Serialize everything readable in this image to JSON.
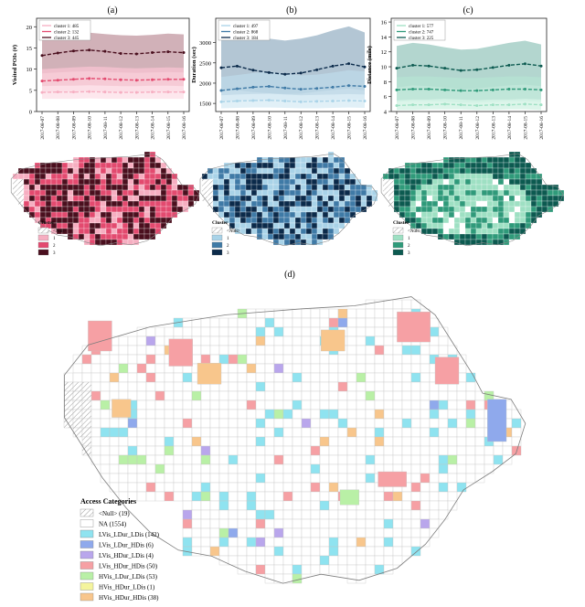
{
  "panels": [
    {
      "label": "(a)",
      "ylabel": "Visited POIs (#)",
      "ylim": [
        0,
        22
      ],
      "yticks": [
        0,
        5,
        10,
        15,
        20
      ],
      "palette": {
        "light": "#f6aec1",
        "mid": "#e34a6f",
        "dark": "#4a0f1e"
      },
      "band_colors": [
        "#fde3ea",
        "#f4c2cf",
        "#c9a3ab"
      ],
      "legend": [
        "cluster 1: 485",
        "cluster 2: 132",
        "cluster 3: 445"
      ],
      "map_legend": {
        "title": "Cluster",
        "items": [
          "<Null>",
          "1",
          "2",
          "3"
        ]
      }
    },
    {
      "label": "(b)",
      "ylabel": "Duration (sec)",
      "ylim": [
        1300,
        3600
      ],
      "yticks": [
        1500,
        2000,
        2500,
        3000
      ],
      "palette": {
        "light": "#a9d3e8",
        "mid": "#3f7aa6",
        "dark": "#0b2a4a"
      },
      "band_colors": [
        "#dcedf6",
        "#bcd7e6",
        "#a6bccd"
      ],
      "legend": [
        "cluster 1: 497",
        "cluster 2: 868",
        "cluster 3: 184"
      ],
      "map_legend": {
        "title": "Cluster",
        "items": [
          "<Null>",
          "1",
          "2",
          "3"
        ]
      }
    },
    {
      "label": "(c)",
      "ylabel": "Distance (mile)",
      "ylim": [
        4,
        16.5
      ],
      "yticks": [
        4,
        6,
        8,
        10,
        12,
        14,
        16
      ],
      "palette": {
        "light": "#9ee0c3",
        "mid": "#2f9a7a",
        "dark": "#0c5a50"
      },
      "band_colors": [
        "#d6f3e6",
        "#b5e2d2",
        "#a6cfc7"
      ],
      "legend": [
        "cluster 1: 577",
        "cluster 2: 747",
        "cluster 3: 225"
      ],
      "map_legend": {
        "title": "Cluster",
        "items": [
          "<Null>",
          "1",
          "2",
          "3"
        ]
      }
    }
  ],
  "panel_d": {
    "label": "(d)",
    "legend_title": "Access Categories",
    "categories": [
      {
        "label": "<Null> (19)",
        "color": "hatch"
      },
      {
        "label": "NA (1554)",
        "color": "#ffffff"
      },
      {
        "label": "LVis_LDur_LDis (142)",
        "color": "#8fe3f0"
      },
      {
        "label": "LVis_LDur_HDis (6)",
        "color": "#8fa9ec"
      },
      {
        "label": "LVis_HDur_LDis (4)",
        "color": "#b9a6ec"
      },
      {
        "label": "LVis_HDur_HDis (50)",
        "color": "#f6a0a4"
      },
      {
        "label": "HVis_LDur_LDis (53)",
        "color": "#b9f0a6"
      },
      {
        "label": "HVis_HDur_LDis (1)",
        "color": "#f4f49c"
      },
      {
        "label": "HVis_HDur_HDis (38)",
        "color": "#f8c68c"
      }
    ]
  },
  "chart_data": [
    {
      "type": "line",
      "x": [
        "2017-08-07",
        "2017-08-08",
        "2017-08-09",
        "2017-08-10",
        "2017-08-11",
        "2017-08-12",
        "2017-08-13",
        "2017-08-14",
        "2017-08-15",
        "2017-08-16"
      ],
      "ylabel": "Visited POIs (#)",
      "ylim": [
        0,
        22
      ],
      "series": [
        {
          "name": "cluster 1: 485",
          "values": [
            4.5,
            4.6,
            4.6,
            4.7,
            4.6,
            4.5,
            4.5,
            4.6,
            4.6,
            4.6
          ],
          "band_low": [
            3.0,
            3.0,
            3.0,
            3.1,
            3.0,
            3.0,
            3.0,
            3.0,
            3.0,
            3.0
          ],
          "band_high": [
            6.0,
            6.1,
            6.1,
            6.2,
            6.1,
            6.0,
            6.0,
            6.1,
            6.1,
            6.0
          ]
        },
        {
          "name": "cluster 2: 132",
          "values": [
            7.2,
            7.4,
            7.6,
            7.8,
            7.7,
            7.5,
            7.4,
            7.5,
            7.6,
            7.6
          ],
          "band_low": [
            4.5,
            4.6,
            4.7,
            4.8,
            4.7,
            4.6,
            4.6,
            4.6,
            4.7,
            4.6
          ],
          "band_high": [
            10.0,
            10.2,
            10.4,
            10.6,
            10.5,
            10.3,
            10.2,
            10.3,
            10.4,
            10.3
          ]
        },
        {
          "name": "cluster 3: 445",
          "values": [
            13.2,
            13.8,
            14.3,
            14.5,
            14.2,
            13.7,
            13.6,
            13.9,
            14.1,
            13.9
          ],
          "band_low": [
            9.0,
            9.2,
            9.4,
            9.5,
            9.3,
            9.2,
            9.1,
            9.2,
            9.3,
            9.2
          ],
          "band_high": [
            17.5,
            18.0,
            18.3,
            18.6,
            18.3,
            18.0,
            17.9,
            18.1,
            18.4,
            18.2
          ]
        }
      ]
    },
    {
      "type": "line",
      "x": [
        "2017-08-07",
        "2017-08-08",
        "2017-08-09",
        "2017-08-10",
        "2017-08-11",
        "2017-08-12",
        "2017-08-13",
        "2017-08-14",
        "2017-08-15",
        "2017-08-16"
      ],
      "ylabel": "Duration (sec)",
      "ylim": [
        1300,
        3600
      ],
      "series": [
        {
          "name": "cluster 1: 497",
          "values": [
            1540,
            1560,
            1570,
            1580,
            1560,
            1540,
            1550,
            1560,
            1570,
            1560
          ],
          "band_low": [
            1380,
            1390,
            1400,
            1400,
            1390,
            1380,
            1380,
            1390,
            1400,
            1390
          ],
          "band_high": [
            1700,
            1720,
            1730,
            1740,
            1720,
            1700,
            1710,
            1720,
            1730,
            1720
          ]
        },
        {
          "name": "cluster 2: 868",
          "values": [
            1820,
            1860,
            1900,
            1920,
            1880,
            1850,
            1870,
            1900,
            1940,
            1920
          ],
          "band_low": [
            1550,
            1570,
            1590,
            1600,
            1580,
            1560,
            1570,
            1590,
            1610,
            1600
          ],
          "band_high": [
            2150,
            2200,
            2250,
            2280,
            2230,
            2190,
            2210,
            2260,
            2320,
            2290
          ]
        },
        {
          "name": "cluster 3: 184",
          "values": [
            2380,
            2420,
            2320,
            2260,
            2220,
            2250,
            2330,
            2420,
            2480,
            2400
          ],
          "band_low": [
            1800,
            1830,
            1780,
            1750,
            1730,
            1740,
            1790,
            1830,
            1870,
            1820
          ],
          "band_high": [
            3200,
            3250,
            3150,
            3100,
            3050,
            3100,
            3180,
            3300,
            3400,
            3250
          ]
        }
      ]
    },
    {
      "type": "line",
      "x": [
        "2017-08-07",
        "2017-08-08",
        "2017-08-09",
        "2017-08-10",
        "2017-08-11",
        "2017-08-12",
        "2017-08-13",
        "2017-08-14",
        "2017-08-15",
        "2017-08-16"
      ],
      "ylabel": "Distance (mile)",
      "ylim": [
        4,
        16.5
      ],
      "series": [
        {
          "name": "cluster 1: 577",
          "values": [
            4.8,
            4.9,
            4.9,
            5.0,
            4.9,
            4.8,
            4.9,
            4.9,
            5.0,
            4.9
          ],
          "band_low": [
            4.2,
            4.2,
            4.3,
            4.3,
            4.3,
            4.2,
            4.2,
            4.3,
            4.3,
            4.2
          ],
          "band_high": [
            5.5,
            5.6,
            5.6,
            5.7,
            5.6,
            5.5,
            5.6,
            5.6,
            5.7,
            5.6
          ]
        },
        {
          "name": "cluster 2: 747",
          "values": [
            6.9,
            7.0,
            7.0,
            6.9,
            6.8,
            6.8,
            6.9,
            7.0,
            7.0,
            6.9
          ],
          "band_low": [
            5.3,
            5.4,
            5.4,
            5.3,
            5.2,
            5.2,
            5.3,
            5.4,
            5.4,
            5.3
          ],
          "band_high": [
            8.6,
            8.7,
            8.7,
            8.6,
            8.5,
            8.5,
            8.6,
            8.7,
            8.7,
            8.6
          ]
        },
        {
          "name": "cluster 3: 225",
          "values": [
            9.8,
            10.2,
            10.1,
            9.8,
            9.5,
            9.6,
            9.9,
            10.2,
            10.4,
            10.1
          ],
          "band_low": [
            7.2,
            7.5,
            7.4,
            7.2,
            7.0,
            7.1,
            7.3,
            7.5,
            7.6,
            7.4
          ],
          "band_high": [
            12.8,
            13.2,
            13.0,
            12.6,
            12.3,
            12.4,
            12.8,
            13.2,
            13.5,
            13.0
          ]
        }
      ]
    }
  ]
}
